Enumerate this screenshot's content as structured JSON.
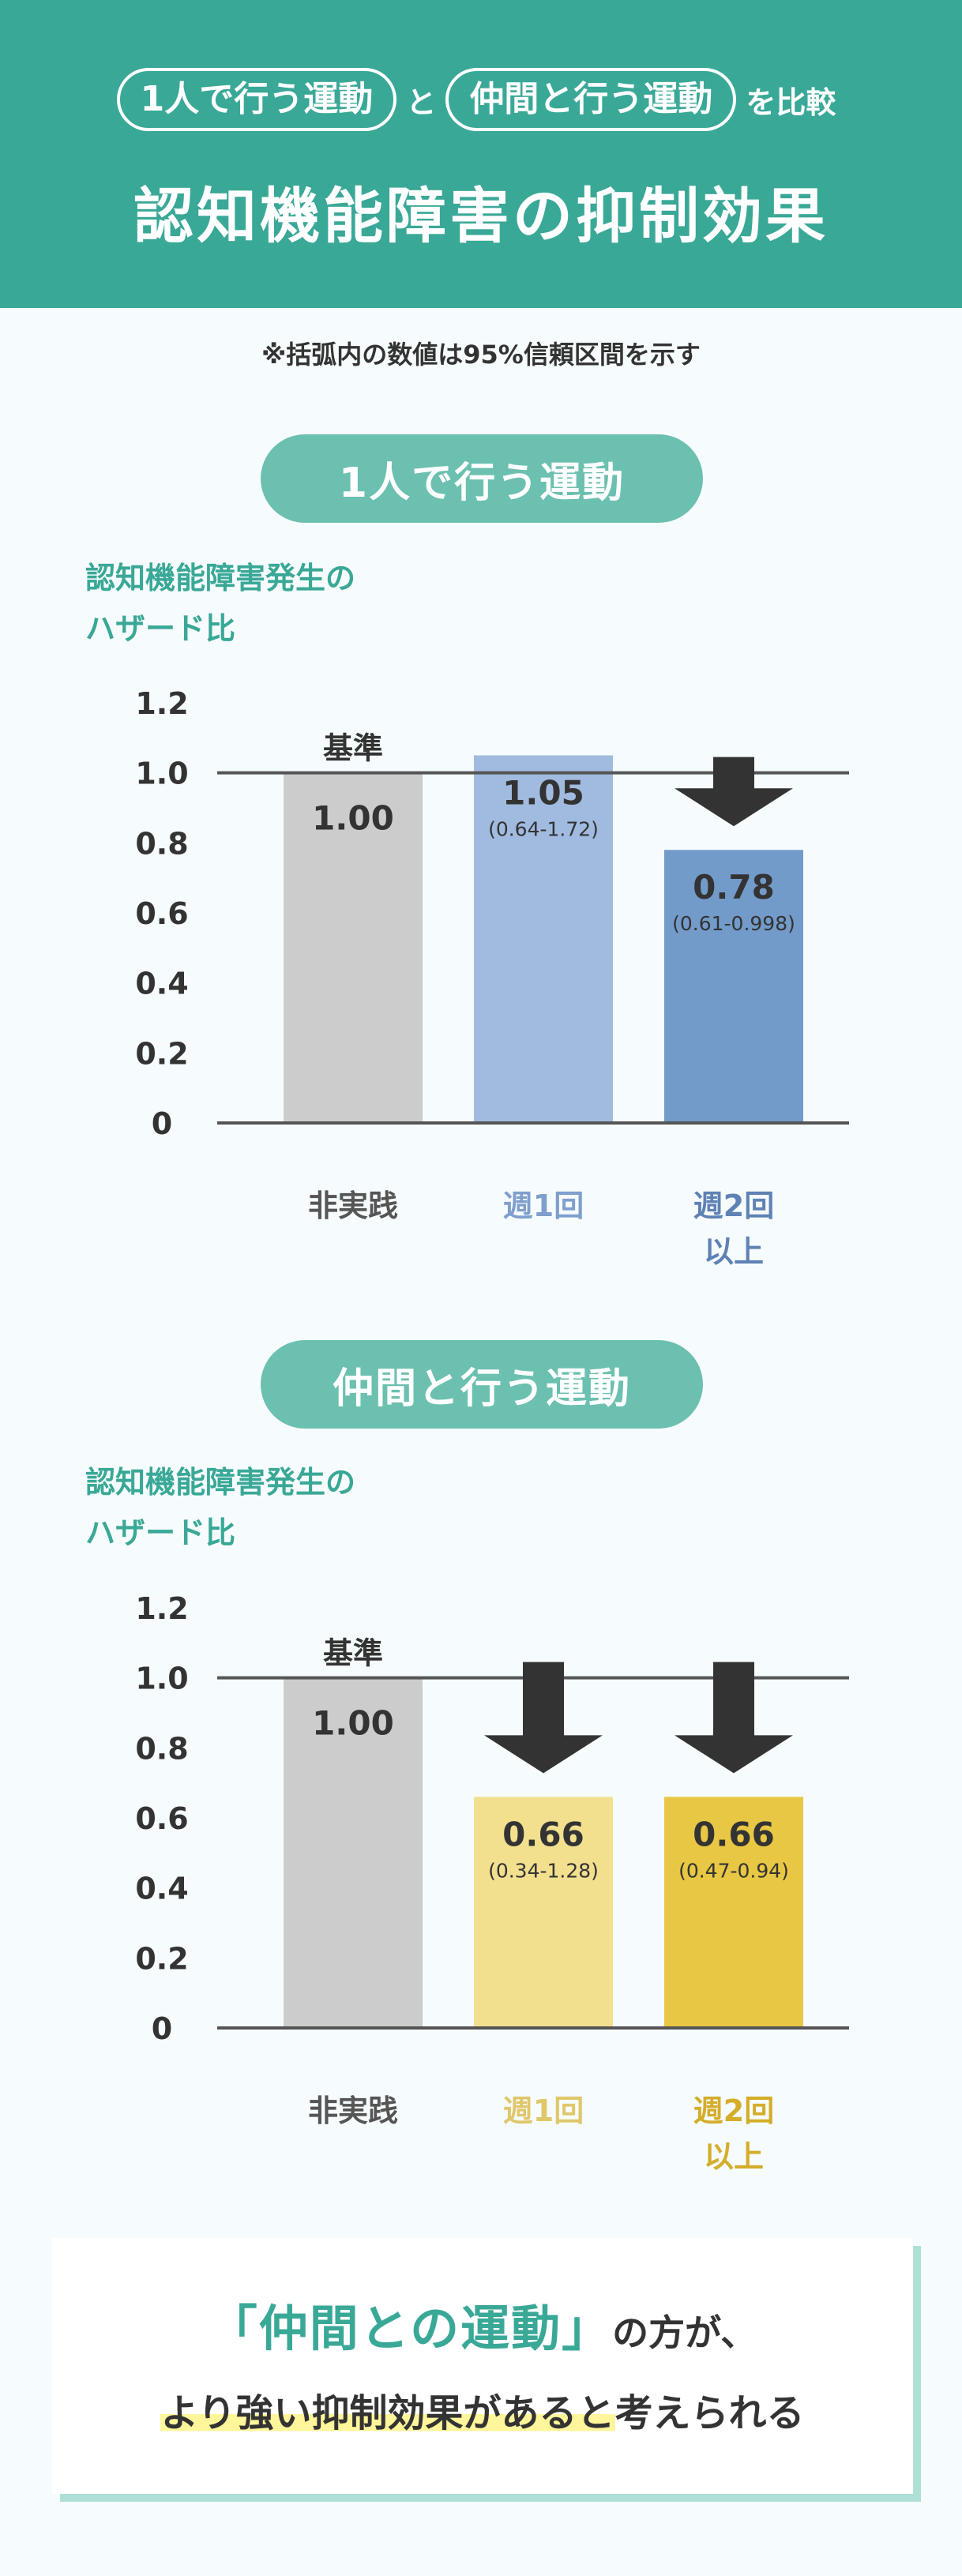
{
  "header": {
    "pill1": "1人で行う運動",
    "conj": "と",
    "pill2": "仲間と行う運動",
    "suffix": "を比較",
    "title": "認知機能障害の抑制効果"
  },
  "note": "※括弧内の数値は95%信頼区間を示す",
  "colors": {
    "teal": "#3aa897",
    "pill": "#6cc0b0",
    "baseline_bar": "#cccccc",
    "arrow": "#333333"
  },
  "chart_data": [
    {
      "type": "bar",
      "section_title": "1人で行う運動",
      "ylabel_line1": "認知機能障害発生の",
      "ylabel_line2": "ハザード比",
      "ylim": [
        0,
        1.2
      ],
      "yticks": [
        "0",
        "0.2",
        "0.4",
        "0.6",
        "0.8",
        "1.0",
        "1.2"
      ],
      "ytick_values": [
        0,
        0.2,
        0.4,
        0.6,
        0.8,
        1.0,
        1.2
      ],
      "reference_line": 1.0,
      "reference_label": "基準",
      "categories": [
        "非実践",
        "週1回",
        "週2回\n以上"
      ],
      "values": [
        1.0,
        1.05,
        0.78
      ],
      "value_labels": [
        "1.00",
        "1.05",
        "0.78"
      ],
      "ci_labels": [
        "",
        "(0.64-1.72)",
        "(0.61-0.998)"
      ],
      "bar_colors": [
        "#cccccc",
        "#a0bbdf",
        "#739bca"
      ],
      "label_colors": [
        "#555555",
        "#7f9fcd",
        "#5f82b5"
      ],
      "arrows": [
        false,
        false,
        true
      ]
    },
    {
      "type": "bar",
      "section_title": "仲間と行う運動",
      "ylabel_line1": "認知機能障害発生の",
      "ylabel_line2": "ハザード比",
      "ylim": [
        0,
        1.2
      ],
      "yticks": [
        "0",
        "0.2",
        "0.4",
        "0.6",
        "0.8",
        "1.0",
        "1.2"
      ],
      "ytick_values": [
        0,
        0.2,
        0.4,
        0.6,
        0.8,
        1.0,
        1.2
      ],
      "reference_line": 1.0,
      "reference_label": "基準",
      "categories": [
        "非実践",
        "週1回",
        "週2回\n以上"
      ],
      "values": [
        1.0,
        0.66,
        0.66
      ],
      "value_labels": [
        "1.00",
        "0.66",
        "0.66"
      ],
      "ci_labels": [
        "",
        "(0.34-1.28)",
        "(0.47-0.94)"
      ],
      "bar_colors": [
        "#cccccc",
        "#f3e08f",
        "#e8c745"
      ],
      "label_colors": [
        "#555555",
        "#e0c76a",
        "#d4ad2a"
      ],
      "arrows": [
        false,
        true,
        true
      ]
    }
  ],
  "conclusion": {
    "highlight": "「仲間との運動」",
    "rest": "の方が、",
    "marked": "より強い抑制効果があると",
    "tail": "考えられる"
  }
}
